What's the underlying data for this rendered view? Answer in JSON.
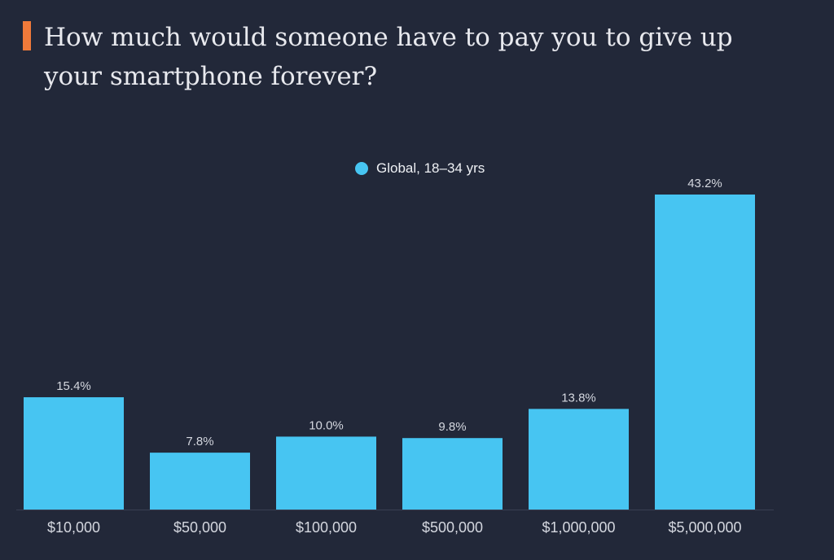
{
  "colors": {
    "accent": "#f07a3a",
    "bar": "#47c5f2",
    "background": "#222839"
  },
  "chart_data": {
    "type": "bar",
    "title": "How much would someone have to pay you to give up your smartphone forever?",
    "categories": [
      "$10,000",
      "$50,000",
      "$100,000",
      "$500,000",
      "$1,000,000",
      "$5,000,000"
    ],
    "series": [
      {
        "name": "Global, 18–34 yrs",
        "values": [
          15.4,
          7.8,
          10.0,
          9.8,
          13.8,
          43.2
        ]
      }
    ],
    "data_labels": [
      "15.4%",
      "7.8%",
      "10.0%",
      "9.8%",
      "13.8%",
      "43.2%"
    ],
    "ylim": [
      0,
      43.2
    ],
    "grid": false,
    "legend_position": "top-center"
  }
}
